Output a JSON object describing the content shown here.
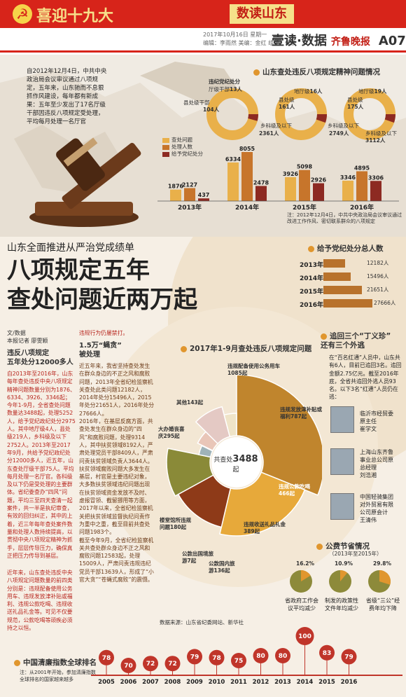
{
  "banner": {
    "title": "喜迎十九大",
    "tag": "数读山东"
  },
  "meta": {
    "date": "2017年10月16日 星期一",
    "editors": "编辑：李雨然  美编：金红  组版：侯波"
  },
  "page": {
    "section": "壹读·数据",
    "paper": "齐鲁晚报",
    "number": "A07"
  },
  "intro": "自2012年12月4日，中共中央政治局会议审议通过八项规定，五年来，山东驰而不息狠抓作风建设，每年都有新成果：五年至少发出了17名厅级干部因违反八项规定受处理，平均每月处理一名厅官",
  "spirit": {
    "title": "山东查处违反八项规定精神问题情况",
    "legend": [
      "查处问题",
      "处理人数",
      "给予党纪处分"
    ],
    "colors": [
      "#e9b04a",
      "#c7752b",
      "#8d2a22"
    ],
    "donuts": [
      {
        "label": "地级以上",
        "value": "13人",
        "label2": "县处级干部",
        "value2": "104人",
        "label3": "乡科级及以下",
        "value3": "2361人"
      },
      {
        "label": "地厅级",
        "value": "16人",
        "label2": "县处级",
        "value2": "161人",
        "label3": "乡科级及以下",
        "value3": "2749人"
      },
      {
        "label": "地厅级",
        "value": "19人",
        "label2": "县处级",
        "value2": "175人",
        "label3": "乡科级及以下",
        "value3": "3112人"
      }
    ],
    "donut_head": "违纪党纪处分",
    "donut_head2": "厅级干部",
    "note": "注：2012年12月4日，中共中央政治局会议审议通过改进工作作风、密切联系群众的八项规定"
  },
  "chart_data": [
    {
      "type": "bar",
      "title": "山东查处违反八项规定精神问题情况",
      "categories": [
        "2013年",
        "2014年",
        "2015年",
        "2016年"
      ],
      "series": [
        {
          "name": "查处问题",
          "values": [
            1876,
            6334,
            3926,
            3346
          ]
        },
        {
          "name": "处理人数",
          "values": [
            2127,
            8055,
            5098,
            4895
          ]
        },
        {
          "name": "给予党纪处分",
          "values": [
            437,
            2478,
            2926,
            3306
          ]
        }
      ]
    },
    {
      "type": "bar",
      "title": "给予党纪政纪处分总人数",
      "categories": [
        "2013年",
        "2014年",
        "2015年",
        "2016年"
      ],
      "series": [
        {
          "values": [
            12182,
            15496,
            21651,
            27666
          ]
        }
      ],
      "unit": "人"
    },
    {
      "type": "pie",
      "title": "2017年1-9月查处违反八项规定问题",
      "total": "3488起",
      "slices": [
        {
          "name": "违规配备使用公务用车",
          "value": 1085
        },
        {
          "name": "违规发放津补贴或福利",
          "value": 787
        },
        {
          "name": "违规公款吃喝",
          "value": 466
        },
        {
          "name": "违规收送礼品礼金",
          "value": 389
        },
        {
          "name": "公款国内旅游",
          "value": 136
        },
        {
          "name": "公款出国境旅游",
          "value": 7
        },
        {
          "name": "楼堂馆所违规问题",
          "value": 180
        },
        {
          "name": "大办婚丧喜庆",
          "value": 295
        },
        {
          "name": "其他",
          "value": 143
        }
      ]
    },
    {
      "type": "line",
      "title": "中国清廉指数全球排名",
      "x": [
        "2005",
        "2006",
        "2007",
        "2008",
        "2009",
        "2010",
        "2011",
        "2012",
        "2013",
        "2014",
        "2015",
        "2016"
      ],
      "values": [
        78,
        70,
        72,
        72,
        79,
        78,
        75,
        80,
        80,
        100,
        83,
        79
      ]
    }
  ],
  "headline": {
    "sub": "山东全面推进从严治党成绩单",
    "line1": "八项规定五年",
    "line2": "查处问题近两万起"
  },
  "byline": {
    "a": "文/数据",
    "b": "本报记者  廖雯颖"
  },
  "col1": {
    "head": "违反八项规定\n五年处分12000多人",
    "text": "自2013年至2016年，山东每年查处违反中央八项规定精神问题数量分别为1876、6334、3926、3346起；今年1-9月，全省查处问题数量达3488起，处理5252人，给予党纪政纪处分2975人。其中地厅级4人，县处级219人，乡科级及以下2752人。2013年至2017年9月，共给予党纪政纪处分12000多人，近五年，山东查处厅级干部75人。平均每月处理一名厅官。各科级及以下仍是受处理的主要群体。省纪委查办“四风”问题，平均三至四天查清一起案件，共一半是执纪审查，有效的回归纠正，其中的上着，近三年每年查处案件数量和处理人数持续提高，以贯彻中央八项规定精神为抓手，层层传导压力，确保真正把压力传导到基层。",
    "text2": "近年来，山东查处违反中央八项规定问题数量的前四类分别是：违规配备使用公务用车、违规发放津补贴或福利、违规公款吃喝、违规收送礼品礼金等。可见不仅要规范，公款吃喝等顽疾必须持之以恒。"
  },
  "col2": {
    "lead": "违规行为仍屡禁打。",
    "head": "1.5万“蝇贪”\n被处理",
    "text": "近五年来，我省坚持查处发生在群众身边的不正之风和腐败问题，2013年全省纪检监察机关查处此类问题12182人，2014年处分15496人，2015年处分21651人，2016年处分27666人。\n2016年，在基层反腐方面，共查处发生在群众身边的“四风”和腐败问题，处理9314人，其中扶贫领域8192人，严肃处理党员干部8409人，严肃问责扶贫领域负责人3644人。\n扶贫领域腐败问题大多发生在基层，村官是主要违纪对象，大多数扶贫领域违纪问题出现在扶贫领域资金发放不及时、虚报冒领、截留挪用等方面，2017年以来，全省纪检监察机关把扶贫领域监督执纪问责作为重中之重，截至目前共查处问题1983个。\n截至今年9月，全省纪检监察机关共查处群众身边不正之风和腐败问题12583起，处理15009人，严肃问责违规违纪党员干部13639人，形成了“小官大贪”“苍蝇式腐败”的震慑。"
  },
  "pie": {
    "title": "2017年1-9月查处违反八项规定问题",
    "center_label": "共查处",
    "center_value": "3488",
    "center_unit": "起",
    "labels": [
      "违规配备使用公务用车1085起",
      "违规发放津补贴或福利787起",
      "违规公款吃喝466起",
      "违规收送礼品礼金389起",
      "公款国内旅游136起",
      "公款出国境旅游7起",
      "楼堂馆所违规问题180起",
      "大办婚丧喜庆295起",
      "其他143起"
    ],
    "colors": [
      "#c0852d",
      "#e7a93a",
      "#8e3a18",
      "#8a8a38",
      "#9fb3b8",
      "#d9b46a",
      "#e9c6b8",
      "#e4c9c4",
      "#efe4c8"
    ],
    "source": "数据来源：山东省纪委网站、新华社"
  },
  "punish": {
    "title": "给予党纪处分总人数",
    "rows": [
      {
        "year": "2013年",
        "value": "12182人"
      },
      {
        "year": "2014年",
        "value": "15496人",
        "frac": 0.56
      },
      {
        "year": "2015年",
        "value": "21651人"
      },
      {
        "year": "2016年",
        "value": "27666人"
      }
    ]
  },
  "hunt": {
    "title": "追回三个“丁义珍”\n还有三个外逃",
    "text": "在“百名红通”人员中，山东共有6人，目前已追回3名。追回金额2.75亿元。截至2016年底，全省共追回外逃人员93名。以下3名“红通”人员仍在逃：",
    "people": [
      {
        "line1": "临沂市经贸委",
        "line2": "原主任",
        "line3": "崔学文"
      },
      {
        "line1": "上海山东齐鲁",
        "line2": "事业总公司原",
        "line3": "总经理",
        "line4": "刘浩湘"
      },
      {
        "line1": "中国轻骑集团",
        "line2": "对外贸易有限",
        "line3": "公司原会计",
        "line4": "王清伟"
      }
    ]
  },
  "savings": {
    "title": "公费节省情况",
    "subtitle": "（2013年至2015年）",
    "items": [
      {
        "pct": "16.2%",
        "frac": 0.162,
        "cap1": "省政府工作会",
        "cap2": "议平均减少"
      },
      {
        "pct": "10.9%",
        "frac": 0.109,
        "cap1": "制发的政策性",
        "cap2": "文件年均减少"
      },
      {
        "pct": "29.8%",
        "frac": 0.298,
        "cap1": "省级“三公”经",
        "cap2": "费年均下降"
      }
    ]
  },
  "rank": {
    "title": "中国清廉指数全球排名",
    "note": "注：从2001年开始，参加清廉指数全球排名的国家越来越多"
  }
}
